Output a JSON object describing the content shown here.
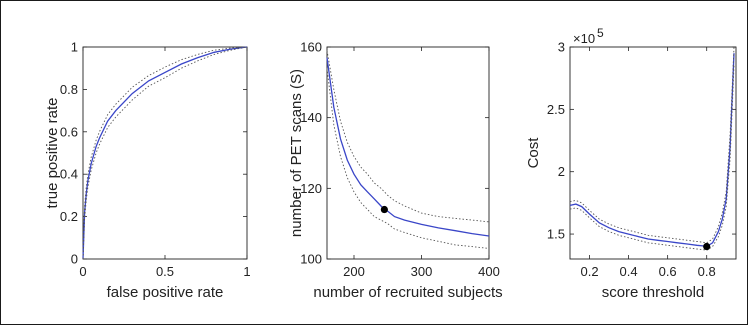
{
  "colors": {
    "mean_line": "#3a46c8",
    "ci_line": "#555555",
    "marker": "#000000",
    "axis": "#222222"
  },
  "chart_data": [
    {
      "type": "line",
      "xlabel": "false positive rate",
      "ylabel": "true positive rate",
      "xlim": [
        0,
        1
      ],
      "ylim": [
        0,
        1
      ],
      "xticks": [
        0,
        0.5,
        1
      ],
      "xtick_labels": [
        "0",
        "0.5",
        "1"
      ],
      "yticks": [
        0,
        0.2,
        0.4,
        0.6,
        0.8,
        1
      ],
      "ytick_labels": [
        "0",
        "0.2",
        "0.4",
        "0.6",
        "0.8",
        "1"
      ],
      "grid": false,
      "series": [
        {
          "role": "mean",
          "x": [
            0,
            0.01,
            0.02,
            0.03,
            0.05,
            0.08,
            0.1,
            0.15,
            0.2,
            0.3,
            0.4,
            0.5,
            0.6,
            0.7,
            0.8,
            0.9,
            1.0
          ],
          "y": [
            0,
            0.22,
            0.31,
            0.37,
            0.45,
            0.53,
            0.57,
            0.65,
            0.7,
            0.78,
            0.84,
            0.88,
            0.92,
            0.95,
            0.975,
            0.99,
            1.0
          ]
        },
        {
          "role": "upper",
          "x": [
            0,
            0.01,
            0.02,
            0.03,
            0.05,
            0.08,
            0.1,
            0.15,
            0.2,
            0.3,
            0.4,
            0.5,
            0.6,
            0.7,
            0.8,
            0.9,
            1.0
          ],
          "y": [
            0,
            0.25,
            0.34,
            0.4,
            0.48,
            0.56,
            0.6,
            0.68,
            0.73,
            0.81,
            0.865,
            0.905,
            0.94,
            0.965,
            0.985,
            0.995,
            1.0
          ]
        },
        {
          "role": "lower",
          "x": [
            0,
            0.01,
            0.02,
            0.03,
            0.05,
            0.08,
            0.1,
            0.15,
            0.2,
            0.3,
            0.4,
            0.5,
            0.6,
            0.7,
            0.8,
            0.9,
            1.0
          ],
          "y": [
            0,
            0.19,
            0.28,
            0.34,
            0.42,
            0.5,
            0.54,
            0.62,
            0.67,
            0.75,
            0.815,
            0.855,
            0.9,
            0.935,
            0.965,
            0.985,
            1.0
          ]
        }
      ]
    },
    {
      "type": "line",
      "xlabel": "number of recruited subjects",
      "ylabel": "number of PET scans (S)",
      "xlim": [
        160,
        400
      ],
      "ylim": [
        100,
        160
      ],
      "xticks": [
        200,
        300,
        400
      ],
      "xtick_labels": [
        "200",
        "300",
        "400"
      ],
      "yticks": [
        100,
        120,
        140,
        160
      ],
      "ytick_labels": [
        "100",
        "120",
        "140",
        "160"
      ],
      "grid": false,
      "marker": {
        "x": 245,
        "y": 114
      },
      "series": [
        {
          "role": "mean",
          "x": [
            160,
            170,
            180,
            190,
            200,
            210,
            220,
            230,
            240,
            245,
            250,
            260,
            275,
            300,
            325,
            350,
            375,
            400
          ],
          "y": [
            157,
            143,
            134,
            128,
            124,
            121,
            119,
            117,
            115,
            114,
            113.5,
            112,
            111,
            109.8,
            108.8,
            108,
            107.2,
            106.5
          ]
        },
        {
          "role": "upper",
          "x": [
            160,
            170,
            180,
            190,
            200,
            210,
            220,
            230,
            240,
            250,
            260,
            275,
            300,
            325,
            350,
            375,
            400
          ],
          "y": [
            159,
            148,
            139,
            133,
            129,
            126,
            124,
            121.5,
            120,
            118,
            116.5,
            115,
            113,
            112,
            111.5,
            111,
            110.5
          ]
        },
        {
          "role": "lower",
          "x": [
            160,
            170,
            180,
            190,
            200,
            210,
            220,
            230,
            240,
            250,
            260,
            275,
            300,
            325,
            350,
            375,
            400
          ],
          "y": [
            154,
            138,
            129,
            123,
            119,
            116,
            114,
            112,
            111,
            110,
            108.5,
            107.5,
            106,
            105,
            104,
            103.5,
            103
          ]
        }
      ]
    },
    {
      "type": "line",
      "xlabel": "score threshold",
      "ylabel": "Cost",
      "xlim": [
        0.1,
        0.95
      ],
      "ylim": [
        1.3,
        3.0
      ],
      "axis_multiplier": "×10",
      "axis_multiplier_exp": "5",
      "xticks": [
        0.2,
        0.4,
        0.6,
        0.8
      ],
      "xtick_labels": [
        "0.2",
        "0.4",
        "0.6",
        "0.8"
      ],
      "yticks": [
        1.5,
        2.0,
        2.5,
        3.0
      ],
      "ytick_labels": [
        "1.5",
        "2",
        "2.5",
        "3"
      ],
      "grid": false,
      "marker": {
        "x": 0.8,
        "y": 1.4
      },
      "series": [
        {
          "role": "mean",
          "x": [
            0.1,
            0.13,
            0.16,
            0.2,
            0.25,
            0.3,
            0.35,
            0.4,
            0.45,
            0.5,
            0.55,
            0.6,
            0.65,
            0.7,
            0.75,
            0.78,
            0.8,
            0.83,
            0.86,
            0.88,
            0.9,
            0.92,
            0.94
          ],
          "y": [
            1.73,
            1.74,
            1.72,
            1.66,
            1.59,
            1.55,
            1.52,
            1.5,
            1.48,
            1.46,
            1.45,
            1.44,
            1.43,
            1.42,
            1.41,
            1.405,
            1.4,
            1.43,
            1.52,
            1.62,
            1.78,
            2.2,
            2.95
          ]
        },
        {
          "role": "upper",
          "x": [
            0.1,
            0.13,
            0.16,
            0.2,
            0.25,
            0.3,
            0.35,
            0.4,
            0.45,
            0.5,
            0.55,
            0.6,
            0.65,
            0.7,
            0.75,
            0.78,
            0.8,
            0.83,
            0.86,
            0.88,
            0.9,
            0.92,
            0.94
          ],
          "y": [
            1.76,
            1.77,
            1.75,
            1.69,
            1.62,
            1.58,
            1.55,
            1.53,
            1.51,
            1.49,
            1.48,
            1.47,
            1.46,
            1.45,
            1.44,
            1.435,
            1.43,
            1.46,
            1.56,
            1.67,
            1.84,
            2.3,
            3.0
          ]
        },
        {
          "role": "lower",
          "x": [
            0.1,
            0.13,
            0.16,
            0.2,
            0.25,
            0.3,
            0.35,
            0.4,
            0.45,
            0.5,
            0.55,
            0.6,
            0.65,
            0.7,
            0.75,
            0.78,
            0.8,
            0.83,
            0.86,
            0.88,
            0.9,
            0.92,
            0.94
          ],
          "y": [
            1.7,
            1.71,
            1.69,
            1.63,
            1.56,
            1.52,
            1.49,
            1.47,
            1.45,
            1.43,
            1.42,
            1.41,
            1.4,
            1.39,
            1.38,
            1.375,
            1.37,
            1.4,
            1.48,
            1.57,
            1.72,
            2.1,
            2.85
          ]
        }
      ]
    }
  ]
}
